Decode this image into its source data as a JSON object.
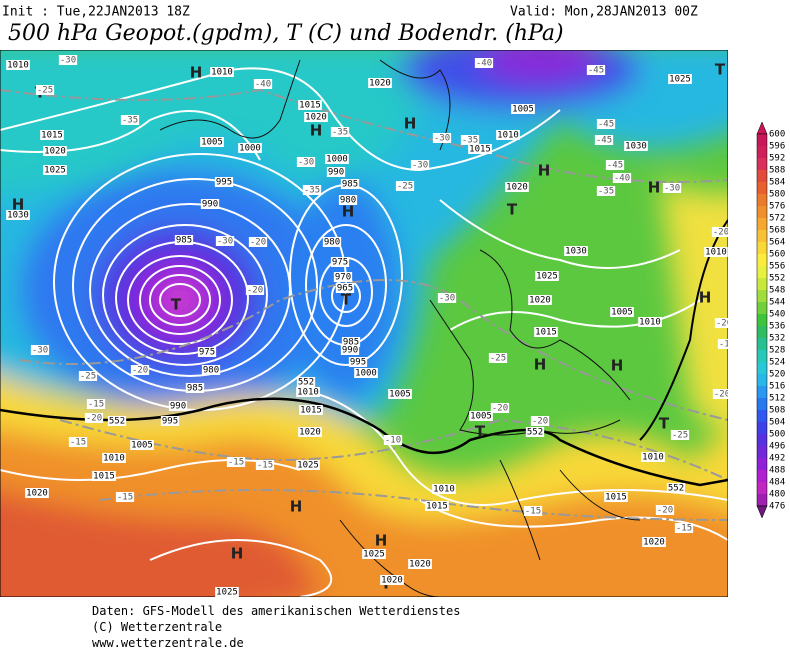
{
  "header": {
    "init": "Init : Tue,22JAN2013 18Z",
    "valid": "Valid: Mon,28JAN2013 00Z",
    "title": "500 hPa Geopot.(gpdm), T (C) und Bodendr. (hPa)"
  },
  "footer": {
    "lines": [
      "Daten: GFS-Modell des amerikanischen Wetterdienstes",
      "(C) Wetterzentrale",
      "www.wetterzentrale.de"
    ]
  },
  "colorbar": {
    "ticks": [
      600,
      596,
      592,
      588,
      584,
      580,
      576,
      572,
      568,
      564,
      560,
      556,
      552,
      548,
      544,
      540,
      536,
      532,
      528,
      524,
      520,
      516,
      512,
      508,
      504,
      500,
      496,
      492,
      488,
      484,
      480,
      476
    ],
    "colors": [
      "#c8185a",
      "#d0205c",
      "#d8305a",
      "#e04b3c",
      "#e86030",
      "#ec7a2c",
      "#f0902c",
      "#f4a830",
      "#f8c034",
      "#fad838",
      "#fcec3c",
      "#e8f040",
      "#c8e83c",
      "#a0dc3c",
      "#70d03c",
      "#40c43c",
      "#30bc60",
      "#28c090",
      "#28c8b8",
      "#28c8d8",
      "#28b8e8",
      "#2898f0",
      "#2878f0",
      "#3058f0",
      "#4040e8",
      "#5830e0",
      "#7028d8",
      "#9020d8",
      "#b020d0",
      "#c028c0",
      "#a020b0",
      "#701880"
    ]
  },
  "map": {
    "labels": [
      "H",
      "T",
      "H",
      "T",
      "T",
      "H",
      "H",
      "H",
      "T",
      "H",
      "H",
      "H",
      "H",
      "T",
      "T",
      "H",
      "H",
      "H",
      "T",
      "T",
      "H",
      "1010",
      "1010",
      "1015",
      "1020",
      "1025",
      "1030",
      "1005",
      "1000",
      "995",
      "990",
      "985",
      "975",
      "980",
      "985",
      "990",
      "995",
      "1005",
      "1010",
      "1015",
      "1020",
      "1015",
      "1020",
      "1020",
      "1000",
      "990",
      "985",
      "980",
      "980",
      "975",
      "970",
      "965",
      "985",
      "990",
      "995",
      "1000",
      "1005",
      "1010",
      "1015",
      "1020",
      "1025",
      "1030",
      "1025",
      "1020",
      "1015",
      "1005",
      "1010",
      "1010",
      "1015",
      "1015",
      "1020",
      "1025",
      "1020",
      "1020",
      "1030",
      "1025",
      "1005",
      "1010",
      "1015",
      "1020",
      "1010",
      "1010",
      "1005",
      "1025",
      "-30",
      "-25",
      "-35",
      "-40",
      "-35",
      "-30",
      "-35",
      "-30",
      "-25",
      "-30",
      "-35",
      "-30",
      "-20",
      "-20",
      "-30",
      "-30",
      "-25",
      "-20",
      "-15",
      "-15",
      "-20",
      "-15",
      "-15",
      "-15",
      "-10",
      "-20",
      "-20",
      "-20",
      "-15",
      "-25",
      "-25",
      "-40",
      "-45",
      "-45",
      "-45",
      "-45",
      "-40",
      "-35",
      "-30",
      "-20",
      "-20",
      "-15",
      "-20",
      "-15",
      "552",
      "552",
      "552",
      "552"
    ]
  }
}
